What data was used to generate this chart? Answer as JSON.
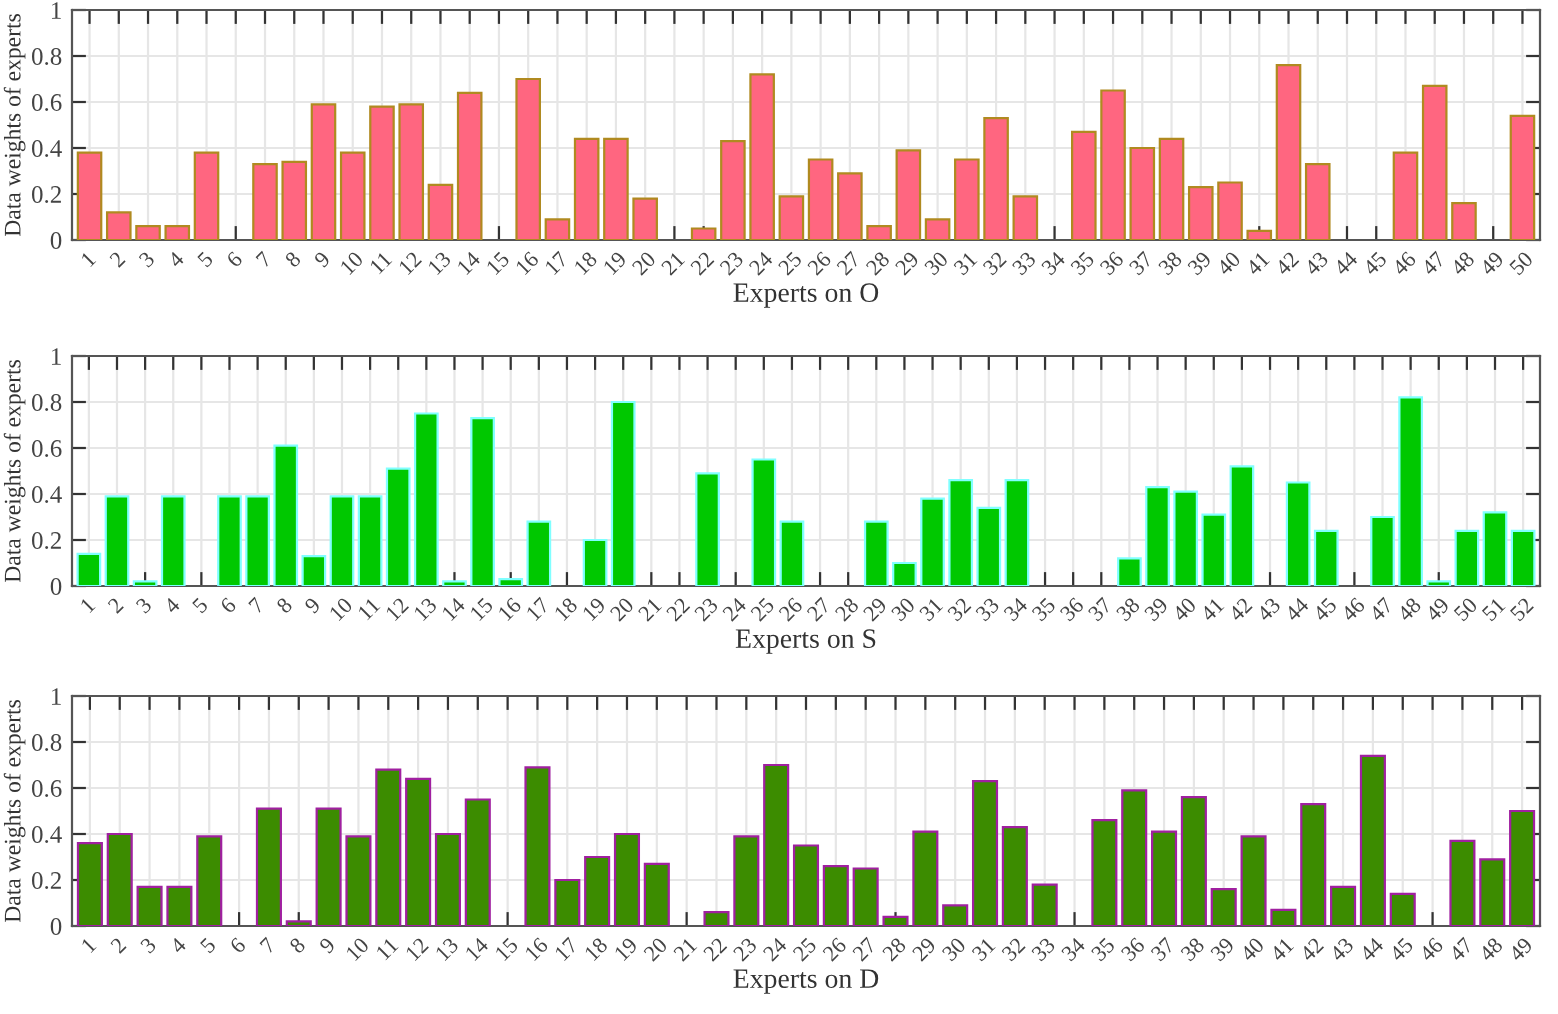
{
  "chart_data": [
    {
      "type": "bar",
      "xlabel": "Experts on O",
      "ylabel": "Data weights of experts",
      "categories": [
        "1",
        "2",
        "3",
        "4",
        "5",
        "6",
        "7",
        "8",
        "9",
        "10",
        "11",
        "12",
        "13",
        "14",
        "15",
        "16",
        "17",
        "18",
        "19",
        "20",
        "21",
        "22",
        "23",
        "24",
        "25",
        "26",
        "27",
        "28",
        "29",
        "30",
        "31",
        "32",
        "33",
        "34",
        "35",
        "36",
        "37",
        "38",
        "39",
        "40",
        "41",
        "42",
        "43",
        "44",
        "45",
        "46",
        "47",
        "48",
        "49",
        "50"
      ],
      "values": [
        0.38,
        0.12,
        0.06,
        0.06,
        0.38,
        null,
        0.33,
        0.34,
        0.59,
        0.38,
        0.58,
        0.59,
        0.24,
        0.64,
        null,
        0.7,
        0.09,
        0.44,
        0.44,
        0.18,
        null,
        0.05,
        0.43,
        0.72,
        0.19,
        0.35,
        0.29,
        0.06,
        0.39,
        0.09,
        0.35,
        0.53,
        0.19,
        null,
        0.47,
        0.65,
        0.4,
        0.44,
        0.23,
        0.25,
        0.04,
        0.76,
        0.33,
        null,
        null,
        0.38,
        0.67,
        0.16,
        null,
        0.54
      ],
      "color": "#ff6680",
      "ylim": [
        0,
        1
      ],
      "yticks": [
        0,
        0.2,
        0.4,
        0.6,
        0.8,
        1
      ],
      "grid": true
    },
    {
      "type": "bar",
      "xlabel": "Experts on S",
      "ylabel": "Data weights of experts",
      "categories": [
        "1",
        "2",
        "3",
        "4",
        "5",
        "6",
        "7",
        "8",
        "9",
        "10",
        "11",
        "12",
        "13",
        "14",
        "15",
        "16",
        "17",
        "18",
        "19",
        "20",
        "21",
        "22",
        "23",
        "24",
        "25",
        "26",
        "27",
        "28",
        "29",
        "30",
        "31",
        "32",
        "33",
        "34",
        "35",
        "36",
        "37",
        "38",
        "39",
        "40",
        "41",
        "42",
        "43",
        "44",
        "45",
        "46",
        "47",
        "48",
        "49",
        "50",
        "51",
        "52"
      ],
      "values": [
        0.14,
        0.39,
        0.02,
        0.39,
        null,
        0.39,
        0.39,
        0.61,
        0.13,
        0.39,
        0.39,
        0.51,
        0.75,
        0.02,
        0.73,
        0.03,
        0.28,
        null,
        0.2,
        0.8,
        null,
        null,
        0.49,
        null,
        0.55,
        0.28,
        null,
        null,
        0.28,
        0.1,
        0.38,
        0.46,
        0.34,
        0.46,
        null,
        null,
        null,
        0.12,
        0.43,
        0.41,
        0.31,
        0.52,
        null,
        0.45,
        0.24,
        null,
        0.3,
        0.82,
        0.02,
        0.24,
        0.32,
        0.24
      ],
      "color": "#00c800",
      "ylim": [
        0,
        1
      ],
      "yticks": [
        0,
        0.2,
        0.4,
        0.6,
        0.8,
        1
      ],
      "grid": true
    },
    {
      "type": "bar",
      "xlabel": "Experts on D",
      "ylabel": "Data weights of experts",
      "categories": [
        "1",
        "2",
        "3",
        "4",
        "5",
        "6",
        "7",
        "8",
        "9",
        "10",
        "11",
        "12",
        "13",
        "14",
        "15",
        "16",
        "17",
        "18",
        "19",
        "20",
        "21",
        "22",
        "23",
        "24",
        "25",
        "26",
        "27",
        "28",
        "29",
        "30",
        "31",
        "32",
        "33",
        "34",
        "35",
        "36",
        "37",
        "38",
        "39",
        "40",
        "41",
        "42",
        "43",
        "44",
        "45",
        "46",
        "47",
        "48",
        "49"
      ],
      "values": [
        0.36,
        0.4,
        0.17,
        0.17,
        0.39,
        null,
        0.51,
        0.02,
        0.51,
        0.39,
        0.68,
        0.64,
        0.4,
        0.55,
        null,
        0.69,
        0.2,
        0.3,
        0.4,
        0.27,
        null,
        0.06,
        0.39,
        0.7,
        0.35,
        0.26,
        0.25,
        0.04,
        0.41,
        0.09,
        0.63,
        0.43,
        0.18,
        null,
        0.46,
        0.59,
        0.41,
        0.56,
        0.16,
        0.39,
        0.07,
        0.53,
        0.17,
        0.74,
        0.14,
        null,
        0.37,
        0.29,
        0.5
      ],
      "color": "#3c8c00",
      "ylim": [
        0,
        1
      ],
      "yticks": [
        0,
        0.2,
        0.4,
        0.6,
        0.8,
        1
      ],
      "grid": true
    }
  ]
}
